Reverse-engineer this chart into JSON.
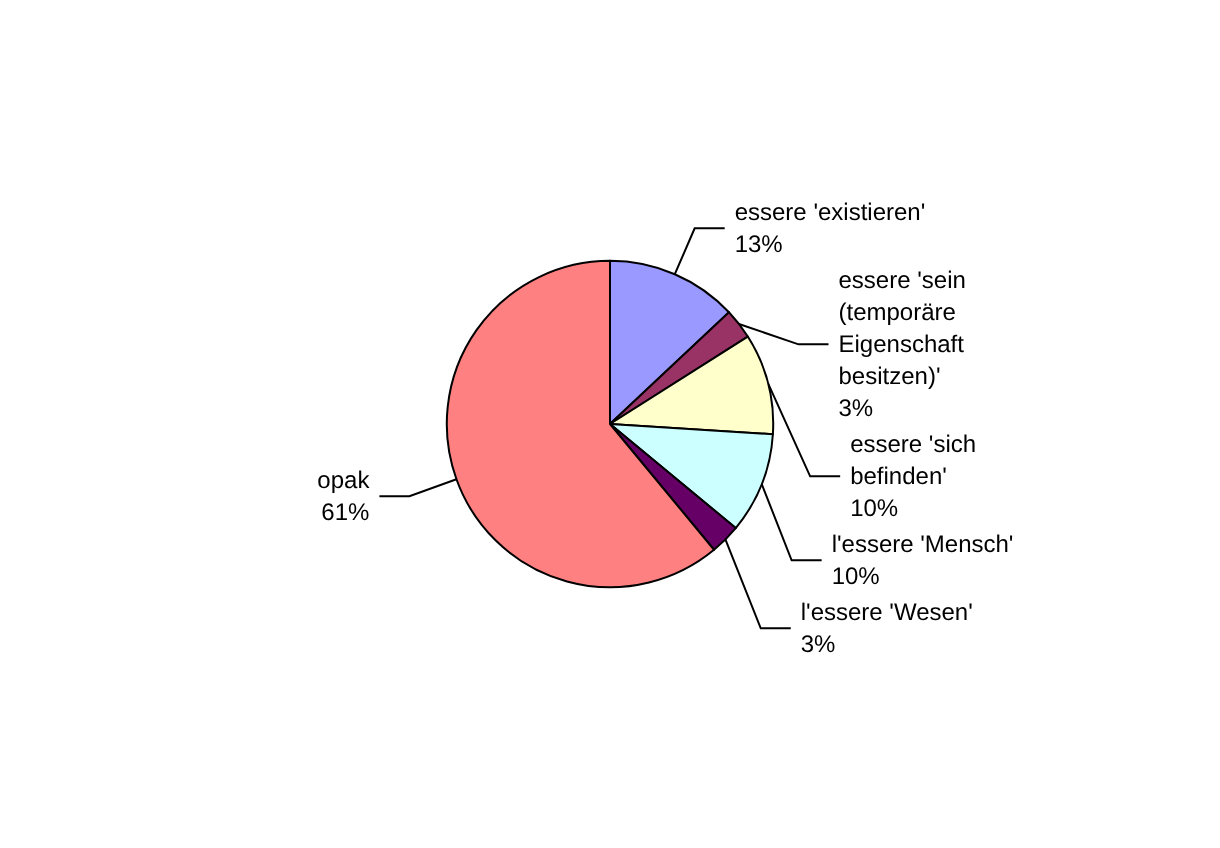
{
  "chart_data": {
    "type": "pie",
    "categories": [
      "essere 'existieren'",
      "essere 'sein (temporäre Eigenschaft besitzen)'",
      "essere 'sich befinden'",
      "l'essere 'Mensch'",
      "l'essere 'Wesen'",
      "opak"
    ],
    "values": [
      13,
      3,
      10,
      10,
      3,
      61
    ],
    "colors": [
      "#9999ff",
      "#993366",
      "#ffffcc",
      "#ccffff",
      "#660066",
      "#ff8080"
    ],
    "value_labels": [
      "13%",
      "3%",
      "10%",
      "10%",
      "3%",
      "61%"
    ],
    "legend": false
  }
}
